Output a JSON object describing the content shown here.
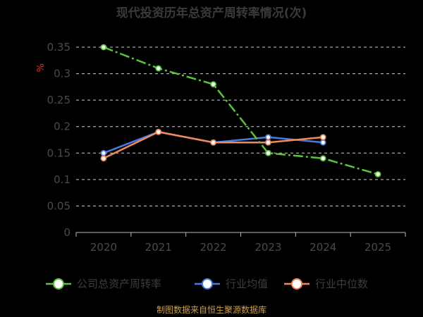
{
  "title": "现代投资历年总资产周转率情况(次)",
  "footer": "制图数据来自恒生聚源数据库",
  "unit_mark": "%",
  "colors": {
    "background": "#000000",
    "grid": "#cccccc",
    "axis": "#bbbbbb",
    "company": "#5bc43a",
    "industry_avg": "#4b7be0",
    "industry_median": "#f08a5d"
  },
  "chart_data": {
    "type": "line",
    "title": "现代投资历年总资产周转率情况(次)",
    "x": [
      "2020",
      "2021",
      "2022",
      "2023",
      "2024",
      "2025"
    ],
    "ylim": [
      0,
      0.35
    ],
    "yticks": [
      "0",
      "0.05",
      "0.1",
      "0.15",
      "0.2",
      "0.25",
      "0.3",
      "0.35"
    ],
    "grid": true,
    "legend_position": "bottom",
    "series": [
      {
        "name": "公司总资产周转率",
        "color_key": "company",
        "style": "dash-dot",
        "values": [
          0.35,
          0.31,
          0.28,
          0.15,
          0.14,
          0.11
        ]
      },
      {
        "name": "行业均值",
        "color_key": "industry_avg",
        "style": "solid",
        "values": [
          0.15,
          0.19,
          0.17,
          0.18,
          0.17,
          null
        ]
      },
      {
        "name": "行业中位数",
        "color_key": "industry_median",
        "style": "solid",
        "values": [
          0.14,
          0.19,
          0.17,
          0.17,
          0.18,
          null
        ]
      }
    ]
  }
}
